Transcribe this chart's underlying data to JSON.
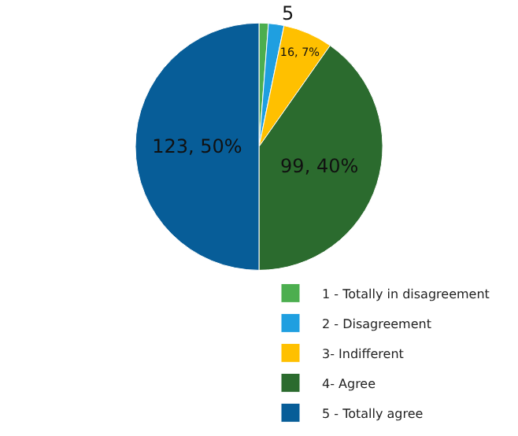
{
  "chart_data": {
    "type": "pie",
    "categories": [
      "1 - Totally in disagreement",
      "2 - Disagreement",
      "3- Indifferent",
      "4- Agree",
      "5 - Totally agree"
    ],
    "values": [
      3,
      5,
      16,
      99,
      123
    ],
    "value_labels": [
      null,
      "5",
      "16, 7%",
      "99, 40%",
      "123, 50%"
    ],
    "colors": [
      "#4cae4f",
      "#1f9fe0",
      "#ffc000",
      "#2b6b2e",
      "#075d98"
    ],
    "legend": "bottom right"
  }
}
